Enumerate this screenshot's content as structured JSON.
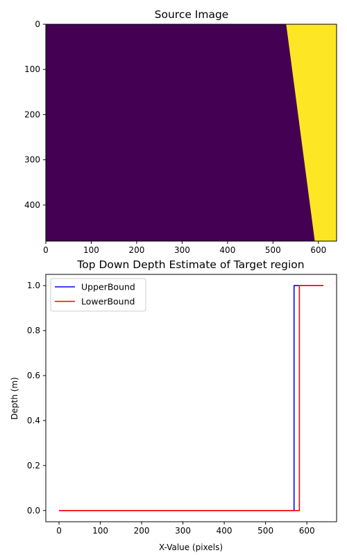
{
  "chart_data": [
    {
      "type": "heatmap",
      "title": "Source Image",
      "xlabel": "",
      "ylabel": "",
      "xlim": [
        0,
        640
      ],
      "ylim": [
        480,
        0
      ],
      "x_ticks": [
        0,
        100,
        200,
        300,
        400,
        500,
        600
      ],
      "y_ticks": [
        0,
        100,
        200,
        300,
        400
      ],
      "colors": {
        "background": "#440154",
        "target": "#fde725"
      },
      "boundary": [
        {
          "y": 0,
          "x": 529
        },
        {
          "y": 480,
          "x": 592
        }
      ]
    },
    {
      "type": "line",
      "title": "Top Down Depth Estimate of Target region",
      "xlabel": "X-Value (pixels)",
      "ylabel": "Depth (m)",
      "xlim": [
        -32,
        672
      ],
      "ylim": [
        -0.05,
        1.05
      ],
      "x_ticks": [
        0,
        100,
        200,
        300,
        400,
        500,
        600
      ],
      "y_ticks": [
        0.0,
        0.2,
        0.4,
        0.6,
        0.8,
        1.0
      ],
      "grid": false,
      "legend_position": "upper-left",
      "series": [
        {
          "name": "UpperBound",
          "color": "#0000ff",
          "points": [
            [
              0,
              0
            ],
            [
              569,
              0
            ],
            [
              569,
              1
            ],
            [
              640,
              1
            ]
          ]
        },
        {
          "name": "LowerBound",
          "color": "#ff0000",
          "points": [
            [
              0,
              0
            ],
            [
              582,
              0
            ],
            [
              582,
              1
            ],
            [
              640,
              1
            ]
          ]
        }
      ]
    }
  ]
}
